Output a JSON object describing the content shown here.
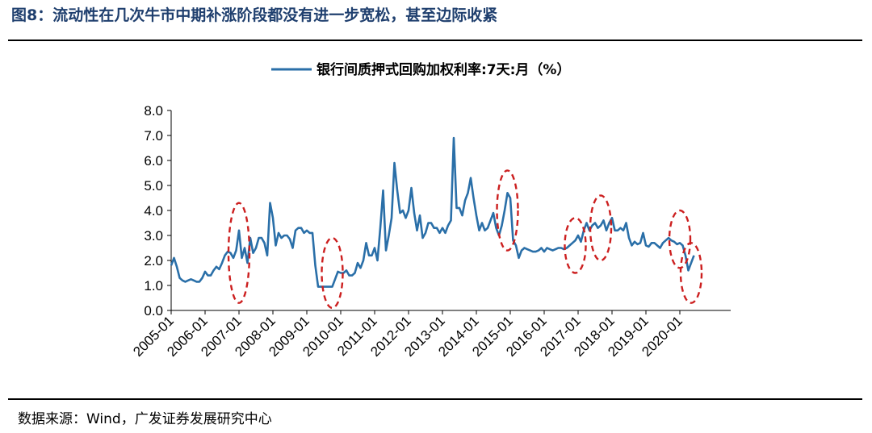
{
  "figure": {
    "title": "图8：流动性在几次牛市中期补涨阶段都没有进一步宽松，甚至边际收紧",
    "source": "数据来源：Wind，广发证券发展研究中心"
  },
  "chart_data": {
    "type": "line",
    "title": "",
    "xlabel": "",
    "ylabel": "",
    "ylim": [
      0,
      8
    ],
    "yticks": [
      "0.0",
      "1.0",
      "2.0",
      "3.0",
      "4.0",
      "5.0",
      "6.0",
      "7.0",
      "8.0"
    ],
    "xticks": [
      "2005-01",
      "2006-01",
      "2007-01",
      "2008-01",
      "2009-01",
      "2010-01",
      "2011-01",
      "2012-01",
      "2013-01",
      "2014-01",
      "2015-01",
      "2016-01",
      "2017-01",
      "2018-01",
      "2019-01",
      "2020-01"
    ],
    "legend": "top-center",
    "grid": false,
    "line_color": "#2a6fa8",
    "annotation_color": "#cc1f1f",
    "series": [
      {
        "name": "银行间质押式回购加权利率:7天:月（%）",
        "x": [
          "2005-01",
          "2005-02",
          "2005-03",
          "2005-04",
          "2005-05",
          "2005-06",
          "2005-07",
          "2005-08",
          "2005-09",
          "2005-10",
          "2005-11",
          "2005-12",
          "2006-01",
          "2006-02",
          "2006-03",
          "2006-04",
          "2006-05",
          "2006-06",
          "2006-07",
          "2006-08",
          "2006-09",
          "2006-10",
          "2006-11",
          "2006-12",
          "2007-01",
          "2007-02",
          "2007-03",
          "2007-04",
          "2007-05",
          "2007-06",
          "2007-07",
          "2007-08",
          "2007-09",
          "2007-10",
          "2007-11",
          "2007-12",
          "2008-01",
          "2008-02",
          "2008-03",
          "2008-04",
          "2008-05",
          "2008-06",
          "2008-07",
          "2008-08",
          "2008-09",
          "2008-10",
          "2008-11",
          "2008-12",
          "2009-01",
          "2009-02",
          "2009-03",
          "2009-04",
          "2009-05",
          "2009-06",
          "2009-07",
          "2009-08",
          "2009-09",
          "2009-10",
          "2009-11",
          "2009-12",
          "2010-01",
          "2010-02",
          "2010-03",
          "2010-04",
          "2010-05",
          "2010-06",
          "2010-07",
          "2010-08",
          "2010-09",
          "2010-10",
          "2010-11",
          "2010-12",
          "2011-01",
          "2011-02",
          "2011-03",
          "2011-04",
          "2011-05",
          "2011-06",
          "2011-07",
          "2011-08",
          "2011-09",
          "2011-10",
          "2011-11",
          "2011-12",
          "2012-01",
          "2012-02",
          "2012-03",
          "2012-04",
          "2012-05",
          "2012-06",
          "2012-07",
          "2012-08",
          "2012-09",
          "2012-10",
          "2012-11",
          "2012-12",
          "2013-01",
          "2013-02",
          "2013-03",
          "2013-04",
          "2013-05",
          "2013-06",
          "2013-07",
          "2013-08",
          "2013-09",
          "2013-10",
          "2013-11",
          "2013-12",
          "2014-01",
          "2014-02",
          "2014-03",
          "2014-04",
          "2014-05",
          "2014-06",
          "2014-07",
          "2014-08",
          "2014-09",
          "2014-10",
          "2014-11",
          "2014-12",
          "2015-01",
          "2015-02",
          "2015-03",
          "2015-04",
          "2015-05",
          "2015-06",
          "2015-07",
          "2015-08",
          "2015-09",
          "2015-10",
          "2015-11",
          "2015-12",
          "2016-01",
          "2016-02",
          "2016-03",
          "2016-04",
          "2016-05",
          "2016-06",
          "2016-07",
          "2016-08",
          "2016-09",
          "2016-10",
          "2016-11",
          "2016-12",
          "2017-01",
          "2017-02",
          "2017-03",
          "2017-04",
          "2017-05",
          "2017-06",
          "2017-07",
          "2017-08",
          "2017-09",
          "2017-10",
          "2017-11",
          "2017-12",
          "2018-01",
          "2018-02",
          "2018-03",
          "2018-04",
          "2018-05",
          "2018-06",
          "2018-07",
          "2018-08",
          "2018-09",
          "2018-10",
          "2018-11",
          "2018-12",
          "2019-01",
          "2019-02",
          "2019-03",
          "2019-04",
          "2019-05",
          "2019-06",
          "2019-07",
          "2019-08",
          "2019-09",
          "2019-10",
          "2019-11",
          "2019-12",
          "2020-01",
          "2020-02",
          "2020-03",
          "2020-04",
          "2020-05",
          "2020-06"
        ],
        "values": [
          1.8,
          2.1,
          1.75,
          1.3,
          1.2,
          1.15,
          1.2,
          1.25,
          1.2,
          1.15,
          1.15,
          1.3,
          1.55,
          1.4,
          1.4,
          1.6,
          1.75,
          1.65,
          1.9,
          2.2,
          2.35,
          2.3,
          2.1,
          2.4,
          3.2,
          2.1,
          2.5,
          1.9,
          2.9,
          2.3,
          2.5,
          2.9,
          2.9,
          2.7,
          2.2,
          4.3,
          3.7,
          2.6,
          3.1,
          2.9,
          3.0,
          3.0,
          2.85,
          2.5,
          3.2,
          3.3,
          3.3,
          3.1,
          3.2,
          3.1,
          3.1,
          1.8,
          0.95,
          0.95,
          0.95,
          0.95,
          0.95,
          0.95,
          1.25,
          1.55,
          1.5,
          1.5,
          1.6,
          1.4,
          1.4,
          1.5,
          1.9,
          1.7,
          2.0,
          2.7,
          2.2,
          2.2,
          2.5,
          2.0,
          3.3,
          4.8,
          2.4,
          3.0,
          3.7,
          5.9,
          4.8,
          3.9,
          4.0,
          3.7,
          4.0,
          4.9,
          3.9,
          3.2,
          3.8,
          2.9,
          3.1,
          3.5,
          3.5,
          3.3,
          3.3,
          3.1,
          3.3,
          3.1,
          3.4,
          3.6,
          6.9,
          4.1,
          4.1,
          3.8,
          4.4,
          4.7,
          5.3,
          4.5,
          3.8,
          3.2,
          3.5,
          3.2,
          3.3,
          3.6,
          3.9,
          3.3,
          3.0,
          3.4,
          4.0,
          4.7,
          4.5,
          2.8,
          2.6,
          2.1,
          2.4,
          2.5,
          2.45,
          2.4,
          2.35,
          2.35,
          2.4,
          2.5,
          2.35,
          2.5,
          2.45,
          2.4,
          2.45,
          2.5,
          2.5,
          2.45,
          2.5,
          2.6,
          2.7,
          2.8,
          3.0,
          2.75,
          3.2,
          3.5,
          3.2,
          3.4,
          3.5,
          3.3,
          3.4,
          3.6,
          3.2,
          3.5,
          3.7,
          3.2,
          3.2,
          3.3,
          3.2,
          3.5,
          2.9,
          2.6,
          2.75,
          2.65,
          2.7,
          3.1,
          2.6,
          2.55,
          2.7,
          2.7,
          2.6,
          2.5,
          2.7,
          2.8,
          2.9,
          2.8,
          2.75,
          2.65,
          2.7,
          2.6,
          2.2,
          1.6,
          1.9,
          2.2
        ]
      }
    ],
    "annotations": [
      {
        "type": "dashed-ellipse",
        "x_center": "2007-01",
        "y_range": [
          0.3,
          4.3
        ]
      },
      {
        "type": "dashed-ellipse",
        "x_center": "2009-10",
        "y_range": [
          0.1,
          2.9
        ]
      },
      {
        "type": "dashed-ellipse",
        "x_center": "2014-12",
        "y_range": [
          2.4,
          5.6
        ]
      },
      {
        "type": "dashed-ellipse",
        "x_center": "2016-12",
        "y_range": [
          1.5,
          3.7
        ]
      },
      {
        "type": "dashed-ellipse",
        "x_center": "2017-09",
        "y_range": [
          2.0,
          4.6
        ]
      },
      {
        "type": "dashed-ellipse",
        "x_center": "2020-01",
        "y_range": [
          1.7,
          4.0
        ]
      },
      {
        "type": "dashed-ellipse",
        "x_center": "2020-05",
        "y_range": [
          0.3,
          2.7
        ]
      }
    ]
  }
}
